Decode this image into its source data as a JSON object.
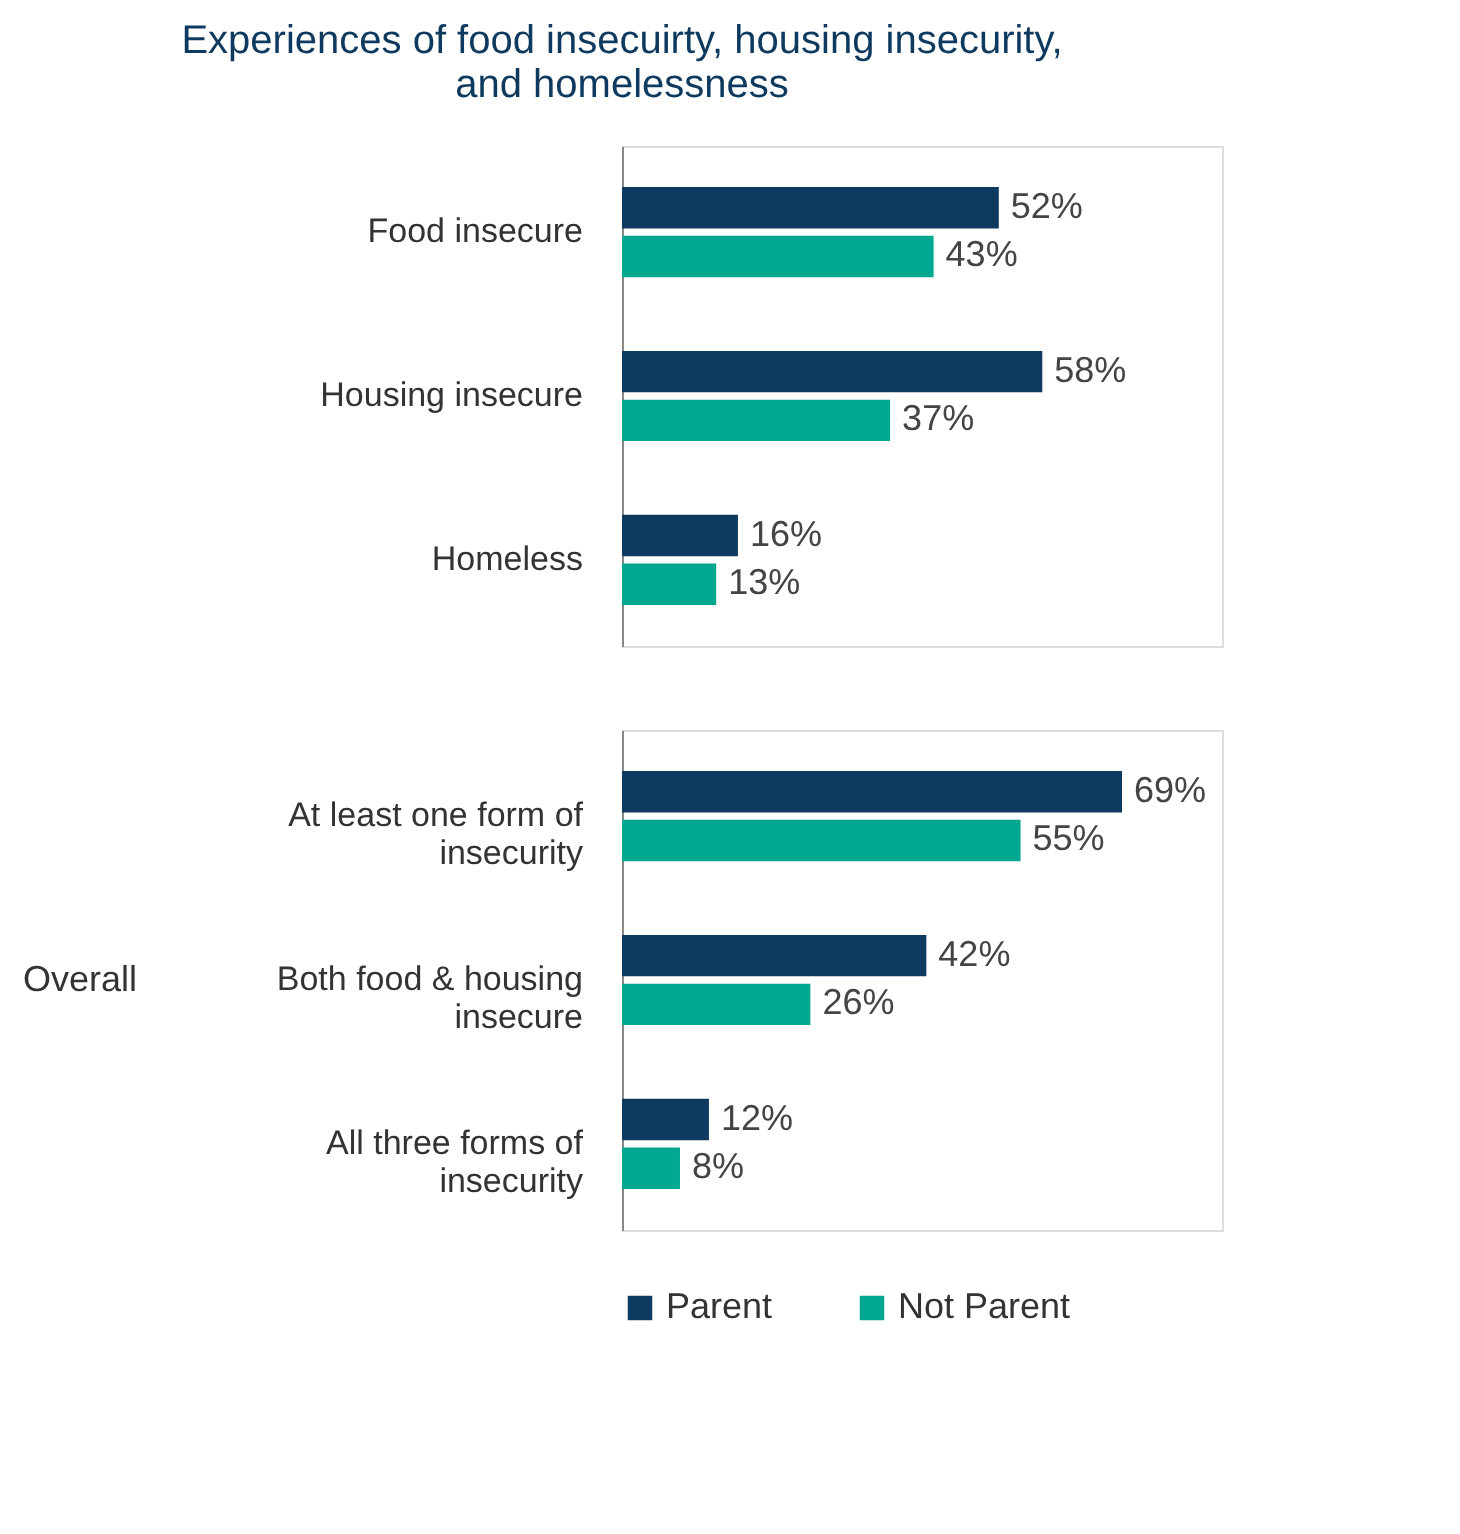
{
  "chart_data": [
    {
      "type": "bar",
      "orientation": "horizontal",
      "title": "Experiences of food insecuirty, housing insecurity, and homelessness",
      "categories": [
        "Food insecure",
        "Housing insecure",
        "Homeless"
      ],
      "series": [
        {
          "color": "#0f3a5f",
          "values": [
            52,
            58,
            16
          ],
          "value_labels": [
            "52%",
            "58%",
            "16%"
          ]
        },
        {
          "color": "#00a88f",
          "values": [
            43,
            37,
            13
          ],
          "value_labels": [
            "43%",
            "37%",
            "13%"
          ]
        }
      ]
    },
    {
      "type": "bar",
      "orientation": "horizontal",
      "ylabel": "Overall",
      "categories": [
        "At least one form of insecurity",
        "Both food & housing insecure",
        "All three forms of insecurity"
      ],
      "legend": "bottom",
      "series": [
        {
          "name": "Parent",
          "color": "#0f3a5f",
          "values": [
            69,
            42,
            12
          ],
          "value_labels": [
            "69%",
            "42%",
            "12%"
          ]
        },
        {
          "name": "Not Parent",
          "color": "#00a88f",
          "values": [
            55,
            26,
            8
          ],
          "value_labels": [
            "55%",
            "26%",
            "8%"
          ]
        }
      ]
    }
  ]
}
